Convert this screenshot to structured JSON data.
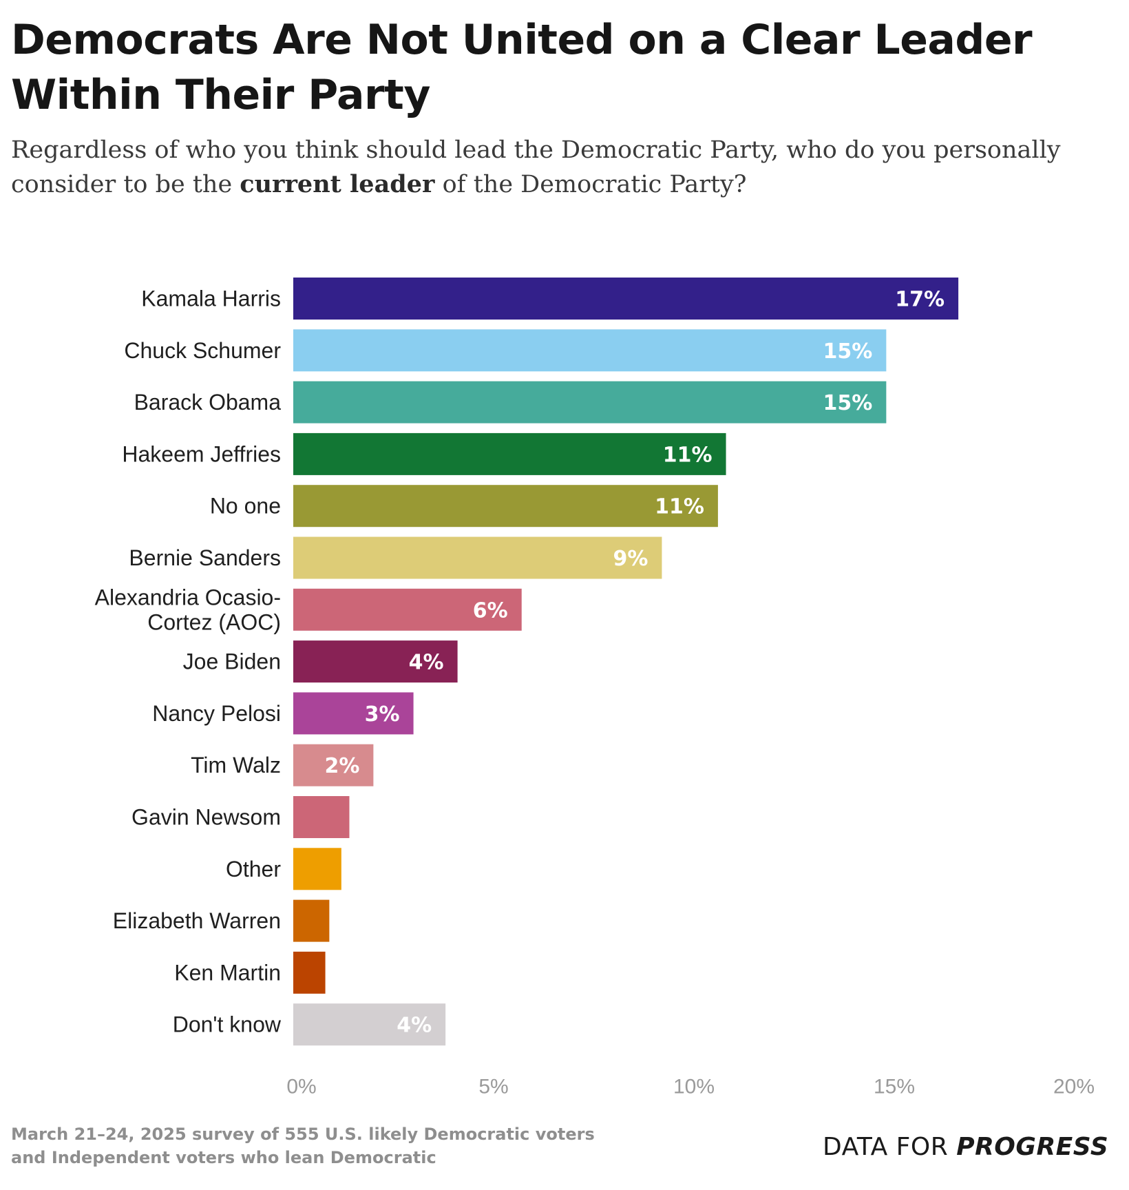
{
  "header": {
    "title": "Democrats Are Not United on a Clear Leader Within Their Party",
    "subtitle_before": "Regardless of who you think should lead the Democratic Party, who do you personally consider to be the ",
    "subtitle_bold": "current leader",
    "subtitle_after": " of the Democratic Party?"
  },
  "chart_data": {
    "type": "bar",
    "orientation": "horizontal",
    "title": "Democrats Are Not United on a Clear Leader Within Their Party",
    "xlabel": "",
    "ylabel": "",
    "xlim": [
      0,
      20
    ],
    "xticks": [
      0,
      5,
      10,
      15,
      20
    ],
    "xtick_labels": [
      "0%",
      "5%",
      "10%",
      "15%",
      "20%"
    ],
    "grid": false,
    "legend": "none",
    "categories": [
      "Kamala Harris",
      "Chuck Schumer",
      "Barack Obama",
      "Hakeem Jeffries",
      "No one",
      "Bernie Sanders",
      "Alexandria Ocasio-Cortez (AOC)",
      "Joe Biden",
      "Nancy Pelosi",
      "Tim Walz",
      "Gavin Newsom",
      "Other",
      "Elizabeth Warren",
      "Ken Martin",
      "Don't know"
    ],
    "category_lines": [
      [
        "Kamala Harris"
      ],
      [
        "Chuck Schumer"
      ],
      [
        "Barack Obama"
      ],
      [
        "Hakeem Jeffries"
      ],
      [
        "No one"
      ],
      [
        "Bernie Sanders"
      ],
      [
        "Alexandria Ocasio-",
        "Cortez (AOC)"
      ],
      [
        "Joe Biden"
      ],
      [
        "Nancy Pelosi"
      ],
      [
        "Tim Walz"
      ],
      [
        "Gavin Newsom"
      ],
      [
        "Other"
      ],
      [
        "Elizabeth Warren"
      ],
      [
        "Ken Martin"
      ],
      [
        "Don't know"
      ]
    ],
    "values": [
      16.6,
      14.8,
      14.8,
      10.8,
      10.6,
      9.2,
      5.7,
      4.1,
      3.0,
      2.0,
      1.4,
      1.2,
      0.9,
      0.8,
      3.8
    ],
    "labels": [
      "17%",
      "15%",
      "15%",
      "11%",
      "11%",
      "9%",
      "6%",
      "4%",
      "3%",
      "2%",
      "",
      "",
      "",
      "",
      "4%"
    ],
    "colors": [
      "#33208a",
      "#8acef0",
      "#46ab9b",
      "#127734",
      "#999934",
      "#ddcc77",
      "#cc6677",
      "#882255",
      "#aa4499",
      "#d78b8e",
      "#cc6677",
      "#ee9e00",
      "#cc6600",
      "#bb4400",
      "#d3cfd1"
    ]
  },
  "footer": {
    "note_line1": "March 21–24, 2025 survey of 555 U.S. likely Democratic voters",
    "note_line2": "and Independent voters who lean Democratic",
    "logo_light": "DATA FOR ",
    "logo_bold": "PROGRESS",
    "logo_icon": "bar-chart-icon"
  }
}
